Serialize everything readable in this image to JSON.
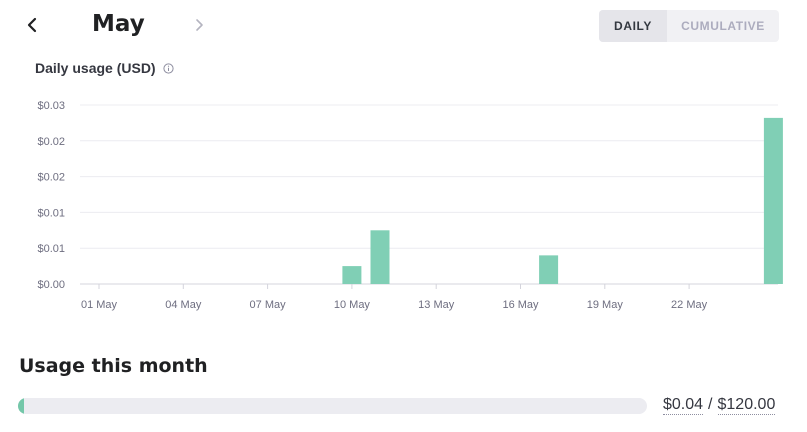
{
  "header": {
    "month": "May",
    "prev_icon": "chevron-left-icon",
    "next_icon": "chevron-right-icon",
    "view_toggle": {
      "daily_label": "DAILY",
      "cumulative_label": "CUMULATIVE",
      "selected": "DAILY"
    }
  },
  "chart": {
    "title": "Daily usage (USD)",
    "info_icon": "info-icon"
  },
  "chart_data": {
    "type": "bar",
    "title": "Daily usage (USD)",
    "xlabel": "",
    "ylabel": "",
    "x_tick_labels": [
      "01 May",
      "04 May",
      "07 May",
      "10 May",
      "13 May",
      "16 May",
      "19 May",
      "22 May"
    ],
    "y_tick_labels": [
      "$0.00",
      "$0.01",
      "$0.01",
      "$0.02",
      "$0.02",
      "$0.03"
    ],
    "ylim": [
      0,
      0.025
    ],
    "categories": [
      "10 May",
      "11 May",
      "17 May",
      "25 May"
    ],
    "values": [
      0.0025,
      0.0075,
      0.004,
      0.0232
    ],
    "color": "#80cfb5",
    "grid": true
  },
  "usage": {
    "title": "Usage this month",
    "used": "$0.04",
    "limit": "$120.00",
    "fraction": 0.0003
  },
  "colors": {
    "accent": "#74c7a9",
    "bar": "#80cfb5",
    "track": "#ececf1"
  }
}
